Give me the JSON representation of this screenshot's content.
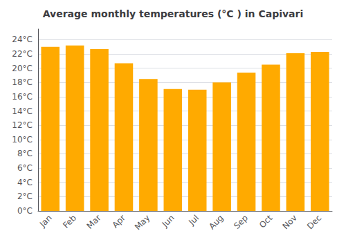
{
  "chart_data": {
    "type": "bar",
    "title": "Average monthly temperatures (°C ) in Capivari",
    "categories": [
      "Jan",
      "Feb",
      "Mar",
      "Apr",
      "May",
      "Jun",
      "Jul",
      "Aug",
      "Sep",
      "Oct",
      "Nov",
      "Dec"
    ],
    "values": [
      23.0,
      23.2,
      22.7,
      20.7,
      18.5,
      17.1,
      17.0,
      18.0,
      19.4,
      20.5,
      22.1,
      22.3
    ],
    "color": "#FFAA00",
    "ylim": [
      0,
      25.5
    ],
    "yticks": [
      {
        "value": 0,
        "label": "0°C"
      },
      {
        "value": 2,
        "label": "2°C"
      },
      {
        "value": 4,
        "label": "4°C"
      },
      {
        "value": 6,
        "label": "6°C"
      },
      {
        "value": 8,
        "label": "8°C"
      },
      {
        "value": 10,
        "label": "10°C"
      },
      {
        "value": 12,
        "label": "12°C"
      },
      {
        "value": 14,
        "label": "14°C"
      },
      {
        "value": 16,
        "label": "16°C"
      },
      {
        "value": 18,
        "label": "18°C"
      },
      {
        "value": 20,
        "label": "20°C"
      },
      {
        "value": 22,
        "label": "22°C"
      },
      {
        "value": 24,
        "label": "24°C"
      }
    ],
    "grid": true
  }
}
